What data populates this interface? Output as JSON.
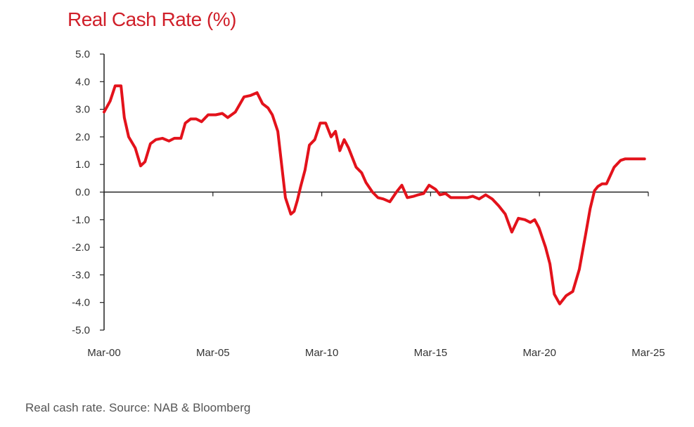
{
  "chart_data": {
    "type": "line",
    "title": "Real Cash Rate (%)",
    "xlabel": "",
    "ylabel": "",
    "ylim": [
      -5,
      5
    ],
    "y_ticks": [
      5,
      4,
      3,
      2,
      1,
      0,
      -1,
      -2,
      -3,
      -4,
      -5
    ],
    "y_tick_labels": [
      "5.0",
      "4.0",
      "3.0",
      "2.0",
      "1.0",
      "0.0",
      "-1.0",
      "-2.0",
      "-3.0",
      "-4.0",
      "-5.0"
    ],
    "x_ticks": [
      2000.17,
      2005.17,
      2010.17,
      2015.17,
      2020.17,
      2025.17
    ],
    "x_tick_labels": [
      "Mar-00",
      "Mar-05",
      "Mar-10",
      "Mar-15",
      "Mar-20",
      "Mar-25"
    ],
    "xlim": [
      2000.17,
      2025.17
    ],
    "series": [
      {
        "name": "Real Cash Rate",
        "color": "#e3121b",
        "x": [
          2000.17,
          2000.45,
          2000.68,
          2000.95,
          2001.1,
          2001.3,
          2001.6,
          2001.85,
          2002.05,
          2002.3,
          2002.55,
          2002.85,
          2003.15,
          2003.4,
          2003.7,
          2003.9,
          2004.15,
          2004.4,
          2004.65,
          2004.95,
          2005.3,
          2005.6,
          2005.85,
          2006.2,
          2006.6,
          2006.9,
          2007.2,
          2007.45,
          2007.7,
          2007.9,
          2008.15,
          2008.5,
          2008.75,
          2008.9,
          2009.05,
          2009.2,
          2009.4,
          2009.6,
          2009.85,
          2010.1,
          2010.35,
          2010.6,
          2010.8,
          2011.0,
          2011.2,
          2011.4,
          2011.55,
          2011.75,
          2012.0,
          2012.2,
          2012.5,
          2012.75,
          2013.0,
          2013.3,
          2013.6,
          2013.85,
          2014.1,
          2014.4,
          2014.6,
          2014.85,
          2015.1,
          2015.4,
          2015.6,
          2015.85,
          2016.1,
          2016.3,
          2016.6,
          2016.85,
          2017.1,
          2017.4,
          2017.7,
          2018.0,
          2018.3,
          2018.6,
          2018.9,
          2019.2,
          2019.5,
          2019.75,
          2019.95,
          2020.15,
          2020.45,
          2020.65,
          2020.85,
          2021.1,
          2021.4,
          2021.7,
          2022.0,
          2022.3,
          2022.5,
          2022.7,
          2022.85,
          2023.05,
          2023.25,
          2023.6,
          2023.9,
          2024.1,
          2024.3,
          2024.5,
          2024.75,
          2025.0
        ],
        "y": [
          2.9,
          3.3,
          3.85,
          3.85,
          2.7,
          2.0,
          1.6,
          0.95,
          1.1,
          1.75,
          1.9,
          1.95,
          1.85,
          1.95,
          1.95,
          2.5,
          2.65,
          2.65,
          2.55,
          2.8,
          2.8,
          2.85,
          2.7,
          2.9,
          3.45,
          3.5,
          3.6,
          3.2,
          3.05,
          2.8,
          2.2,
          -0.2,
          -0.8,
          -0.7,
          -0.3,
          0.2,
          0.8,
          1.7,
          1.9,
          2.5,
          2.5,
          2.0,
          2.2,
          1.5,
          1.9,
          1.6,
          1.3,
          0.9,
          0.7,
          0.35,
          0.0,
          -0.2,
          -0.25,
          -0.35,
          0.0,
          0.25,
          -0.2,
          -0.15,
          -0.1,
          -0.05,
          0.25,
          0.1,
          -0.1,
          -0.05,
          -0.2,
          -0.2,
          -0.2,
          -0.2,
          -0.15,
          -0.25,
          -0.1,
          -0.25,
          -0.5,
          -0.8,
          -1.45,
          -0.95,
          -1.0,
          -1.1,
          -1.0,
          -1.3,
          -2.0,
          -2.6,
          -3.7,
          -4.05,
          -3.75,
          -3.6,
          -2.8,
          -1.5,
          -0.6,
          0.05,
          0.2,
          0.3,
          0.3,
          0.9,
          1.15,
          1.2,
          1.2,
          1.2,
          1.2,
          1.2
        ]
      }
    ]
  },
  "caption": "Real cash rate. Source: NAB & Bloomberg"
}
